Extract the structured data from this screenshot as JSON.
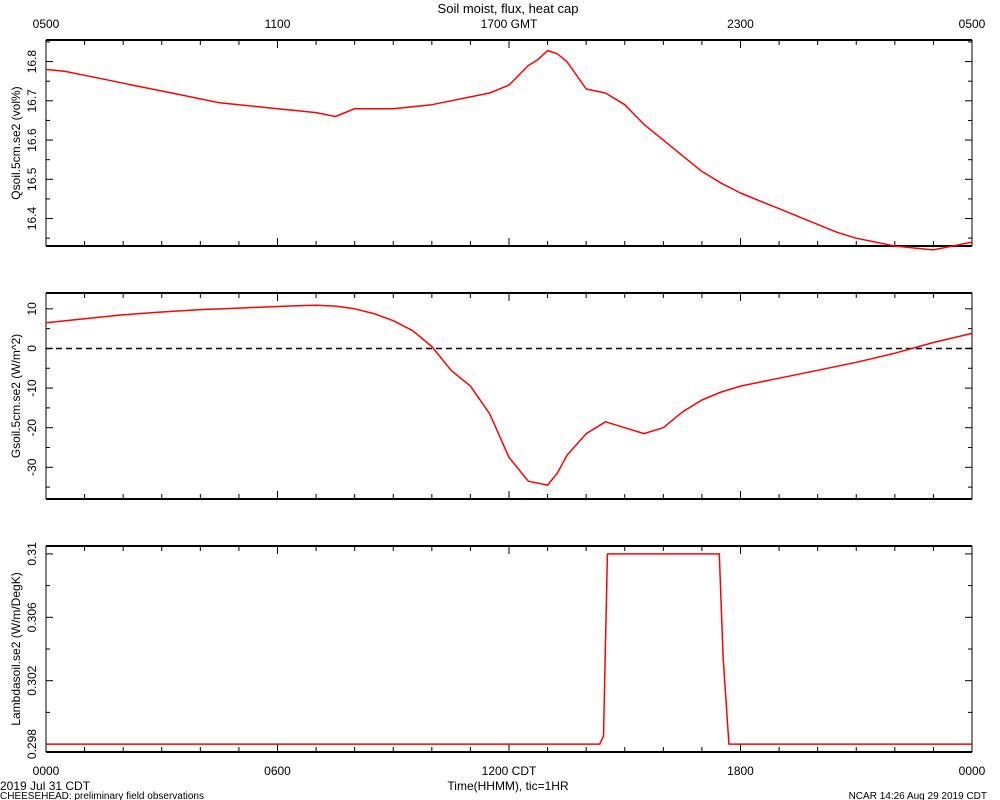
{
  "title": "Soil moist, flux, heat cap",
  "top_axis": {
    "ticks": [
      "0500",
      "1100",
      "1700 GMT",
      "2300",
      "0500"
    ]
  },
  "bottom_axis": {
    "ticks": [
      "0000",
      "0600",
      "1200 CDT",
      "1800",
      "0000"
    ],
    "label": "Time(HHMM), tic=1HR"
  },
  "footer": {
    "date": "2019 Jul 31 CDT",
    "project": "CHEESEHEAD: preliminary field observations",
    "credit": "NCAR 14:26 Aug 29 2019 CDT"
  },
  "colors": {
    "series": "#ff0000",
    "zero_line": "#000000",
    "frame": "#000000"
  },
  "chart_data": [
    {
      "type": "line",
      "ylabel": "Qsoil.5cm.se2 (vol%)",
      "yticks": [
        16.4,
        16.5,
        16.6,
        16.7,
        16.8
      ],
      "ylim": [
        16.33,
        16.855
      ],
      "xlim": [
        0,
        24
      ],
      "x": [
        0,
        0.5,
        1,
        1.5,
        2,
        2.5,
        3,
        3.5,
        4,
        4.5,
        5,
        5.5,
        6,
        6.5,
        7,
        7.5,
        8,
        8.5,
        9,
        9.5,
        10,
        10.5,
        11,
        11.5,
        12,
        12.5,
        12.75,
        13,
        13.25,
        13.5,
        14,
        14.5,
        15,
        15.5,
        16,
        16.5,
        17,
        17.5,
        18,
        18.5,
        19,
        19.5,
        20,
        20.5,
        21,
        21.5,
        22,
        22.5,
        23,
        23.5,
        24
      ],
      "values": [
        16.78,
        16.775,
        16.765,
        16.755,
        16.745,
        16.735,
        16.725,
        16.715,
        16.705,
        16.695,
        16.69,
        16.685,
        16.68,
        16.675,
        16.67,
        16.66,
        16.68,
        16.68,
        16.68,
        16.685,
        16.69,
        16.7,
        16.71,
        16.72,
        16.74,
        16.79,
        16.805,
        16.828,
        16.82,
        16.8,
        16.73,
        16.72,
        16.69,
        16.64,
        16.6,
        16.56,
        16.52,
        16.49,
        16.465,
        16.445,
        16.425,
        16.405,
        16.385,
        16.365,
        16.35,
        16.34,
        16.33,
        16.325,
        16.32,
        16.33,
        16.34
      ]
    },
    {
      "type": "line",
      "ylabel": "Gsoil.5cm.se2 (W/m^2)",
      "yticks": [
        -30,
        -20,
        -10,
        0,
        10
      ],
      "ylim": [
        -38,
        14
      ],
      "xlim": [
        0,
        24
      ],
      "reference_line": 0,
      "x": [
        0,
        1,
        2,
        3,
        4,
        5,
        6,
        6.5,
        7,
        7.5,
        8,
        8.5,
        9,
        9.5,
        10,
        10.5,
        11,
        11.5,
        12,
        12.5,
        13,
        13.25,
        13.5,
        14,
        14.5,
        15,
        15.5,
        16,
        16.5,
        17,
        17.5,
        18,
        19,
        20,
        21,
        22,
        23,
        24
      ],
      "values": [
        6.5,
        7.5,
        8.5,
        9.2,
        9.8,
        10.2,
        10.6,
        10.8,
        10.9,
        10.7,
        10.0,
        8.8,
        7.0,
        4.5,
        0.5,
        -5.5,
        -9.5,
        -16.5,
        -27.5,
        -33.5,
        -34.5,
        -31.5,
        -27,
        -21.5,
        -18.5,
        -20,
        -21.5,
        -20,
        -16,
        -13,
        -11,
        -9.5,
        -7.5,
        -5.5,
        -3.5,
        -1.2,
        1.5,
        3.8
      ]
    },
    {
      "type": "line",
      "ylabel": "Lambdasoil.se2 (W/m/DegK)",
      "yticks": [
        0.298,
        0.302,
        0.306,
        0.31
      ],
      "ylim": [
        0.2975,
        0.3105
      ],
      "xlim": [
        0,
        24
      ],
      "x": [
        0,
        14.35,
        14.45,
        14.55,
        17.45,
        17.55,
        17.7,
        24
      ],
      "values": [
        0.298,
        0.298,
        0.2985,
        0.31,
        0.31,
        0.3035,
        0.298,
        0.298
      ]
    }
  ]
}
